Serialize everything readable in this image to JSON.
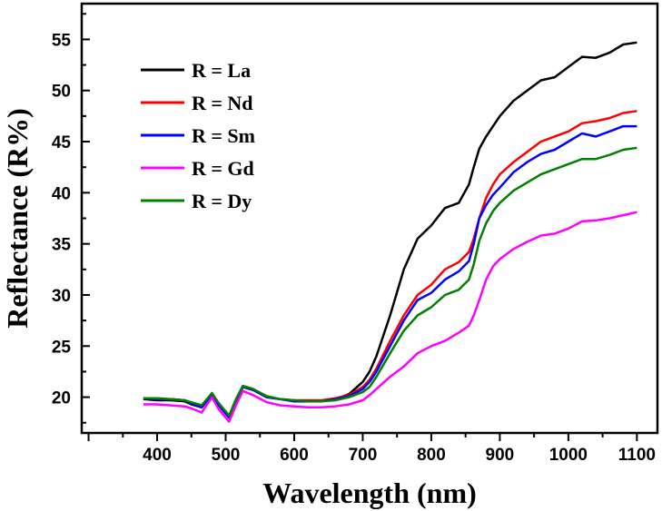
{
  "chart_data": {
    "type": "line",
    "title": "",
    "xlabel": "Wavelength (nm)",
    "ylabel": "Reflectance (R%)",
    "xlim": [
      290,
      1130
    ],
    "ylim": [
      16.5,
      58.5
    ],
    "xticks": [
      400,
      500,
      600,
      700,
      800,
      900,
      1000,
      1100
    ],
    "xtick_labels": [
      "400",
      "500",
      "600",
      "700",
      "800",
      "900",
      "1000",
      "1100"
    ],
    "yticks": [
      20,
      25,
      30,
      35,
      40,
      45,
      50,
      55
    ],
    "ytick_labels": [
      "20",
      "25",
      "30",
      "35",
      "40",
      "45",
      "50",
      "55"
    ],
    "legend_position": "top-left",
    "x": [
      380,
      400,
      420,
      440,
      450,
      465,
      480,
      490,
      505,
      515,
      525,
      540,
      560,
      580,
      600,
      620,
      640,
      660,
      680,
      700,
      710,
      720,
      740,
      760,
      780,
      800,
      820,
      840,
      855,
      862,
      870,
      880,
      890,
      900,
      920,
      940,
      960,
      980,
      1000,
      1020,
      1040,
      1060,
      1080,
      1100
    ],
    "series": [
      {
        "name": "R = La",
        "color": "#000000",
        "values": [
          19.8,
          19.7,
          19.7,
          19.6,
          19.3,
          19.0,
          20.3,
          19.2,
          18.0,
          19.6,
          21.0,
          20.7,
          20.0,
          19.8,
          19.6,
          19.6,
          19.6,
          19.8,
          20.3,
          21.5,
          22.5,
          24.0,
          28.0,
          32.5,
          35.5,
          36.8,
          38.5,
          39.0,
          40.8,
          42.5,
          44.3,
          45.5,
          46.5,
          47.5,
          49.0,
          50.0,
          51.0,
          51.3,
          52.3,
          53.3,
          53.2,
          53.7,
          54.5,
          54.7
        ]
      },
      {
        "name": "R = Nd",
        "color": "#ff0000",
        "values": [
          19.9,
          19.8,
          19.8,
          19.7,
          19.4,
          19.0,
          20.4,
          19.3,
          18.1,
          19.7,
          21.1,
          20.8,
          20.0,
          19.8,
          19.7,
          19.7,
          19.7,
          19.9,
          20.2,
          21.0,
          21.7,
          22.8,
          25.5,
          28.0,
          30.0,
          31.0,
          32.5,
          33.2,
          34.2,
          35.5,
          37.5,
          39.5,
          40.8,
          41.8,
          43.0,
          44.0,
          45.0,
          45.5,
          46.0,
          46.8,
          47.0,
          47.3,
          47.8,
          48.0
        ]
      },
      {
        "name": "R = Sm",
        "color": "#0000ff",
        "values": [
          19.9,
          19.8,
          19.8,
          19.7,
          19.4,
          19.0,
          20.3,
          19.2,
          18.0,
          19.6,
          21.0,
          20.7,
          20.0,
          19.8,
          19.6,
          19.6,
          19.6,
          19.8,
          20.1,
          20.8,
          21.5,
          22.5,
          25.0,
          27.5,
          29.5,
          30.2,
          31.5,
          32.3,
          33.3,
          35.0,
          37.5,
          38.8,
          39.8,
          40.5,
          42.0,
          43.0,
          43.8,
          44.2,
          45.0,
          45.8,
          45.5,
          46.0,
          46.5,
          46.5
        ]
      },
      {
        "name": "R = Gd",
        "color": "#ff00ff",
        "values": [
          19.3,
          19.3,
          19.2,
          19.1,
          18.9,
          18.5,
          20.0,
          18.8,
          17.6,
          19.2,
          20.6,
          20.2,
          19.5,
          19.2,
          19.1,
          19.0,
          19.0,
          19.1,
          19.3,
          19.7,
          20.2,
          20.8,
          22.0,
          23.0,
          24.3,
          25.0,
          25.5,
          26.3,
          27.0,
          28.0,
          29.5,
          31.5,
          32.8,
          33.5,
          34.5,
          35.2,
          35.8,
          36.0,
          36.5,
          37.2,
          37.3,
          37.5,
          37.8,
          38.1
        ]
      },
      {
        "name": "R = Dy",
        "color": "#008000",
        "values": [
          19.9,
          19.9,
          19.8,
          19.7,
          19.5,
          19.2,
          20.4,
          19.4,
          18.2,
          19.8,
          21.1,
          20.8,
          20.1,
          19.8,
          19.7,
          19.6,
          19.6,
          19.7,
          20.0,
          20.5,
          21.0,
          22.0,
          24.3,
          26.5,
          28.0,
          28.8,
          30.0,
          30.5,
          31.5,
          33.0,
          35.3,
          37.0,
          38.2,
          39.0,
          40.2,
          41.0,
          41.8,
          42.3,
          42.8,
          43.3,
          43.3,
          43.7,
          44.2,
          44.4
        ]
      }
    ]
  }
}
